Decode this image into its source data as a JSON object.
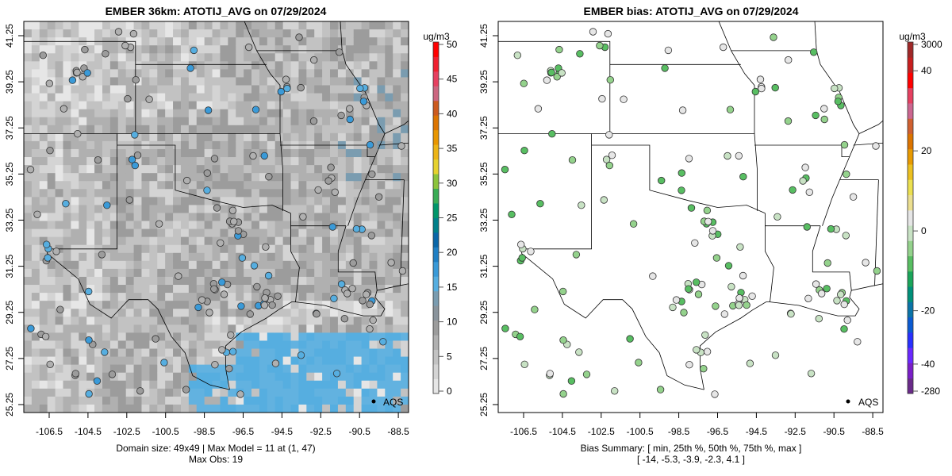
{
  "left_panel": {
    "title": "EMBER 36km: ATOTIJ_AVG on 07/29/2024",
    "units": "ug/m3",
    "colorbar_ticks": [
      "50",
      "45",
      "40",
      "35",
      "30",
      "25",
      "20",
      "15",
      "10",
      "5",
      "0"
    ],
    "legend_label": "AQS",
    "footer_line1": "Domain size: 49x49 | Max Model = 11 at (1, 47)",
    "footer_line2": "Max Obs: 19"
  },
  "right_panel": {
    "title": "EMBER bias: ATOTIJ_AVG on 07/29/2024",
    "units": "ug/m3",
    "colorbar_ticks": [
      "3000",
      "40",
      "20",
      "0",
      "-20",
      "-40",
      "-280"
    ],
    "legend_label": "AQS",
    "footer_line1": "Bias Summary: [ min, 25th %, 50th %, 75th %, max ]",
    "footer_line2": "[ -14,   -5.3,   -3.9,   -2.3,   4.1 ]"
  },
  "axes": {
    "lon_ticks": [
      "-106.5",
      "-104.5",
      "-102.5",
      "-100.5",
      "-98.5",
      "-96.5",
      "-94.5",
      "-92.5",
      "-90.5",
      "-88.5"
    ],
    "lat_ticks": [
      "41.25",
      "39.25",
      "37.25",
      "35.25",
      "33.25",
      "31.25",
      "29.25",
      "27.25",
      "25.25"
    ]
  },
  "colors": {
    "conc_scale": [
      "#e6e6e6",
      "#d4d4d4",
      "#c2c2c2",
      "#b0b0b0",
      "#9c9c9c",
      "#8a949c",
      "#7a9cb0",
      "#56aee0",
      "#3a9ad8",
      "#1f7fc4",
      "#0a66a8",
      "#00808a",
      "#00966a",
      "#3aac55",
      "#8cc43c",
      "#e6d22e",
      "#ecb416",
      "#e89600",
      "#dc7400",
      "#cc5a1e",
      "#cc6680",
      "#e64060",
      "#f02030",
      "#ff0000"
    ],
    "bias_scale": [
      "#6a2a8a",
      "#7a1ec8",
      "#6a28ff",
      "#2830ff",
      "#0a5ad2",
      "#0a74a8",
      "#00907a",
      "#1aa55a",
      "#58be62",
      "#94d28c",
      "#c8e2c4",
      "#e6e6e6",
      "#ecdf90",
      "#ece050",
      "#ecc020",
      "#e89a00",
      "#dc7400",
      "#d06030",
      "#cc6690",
      "#e64060",
      "#ff0000",
      "#c81e1e",
      "#a02828"
    ]
  }
}
